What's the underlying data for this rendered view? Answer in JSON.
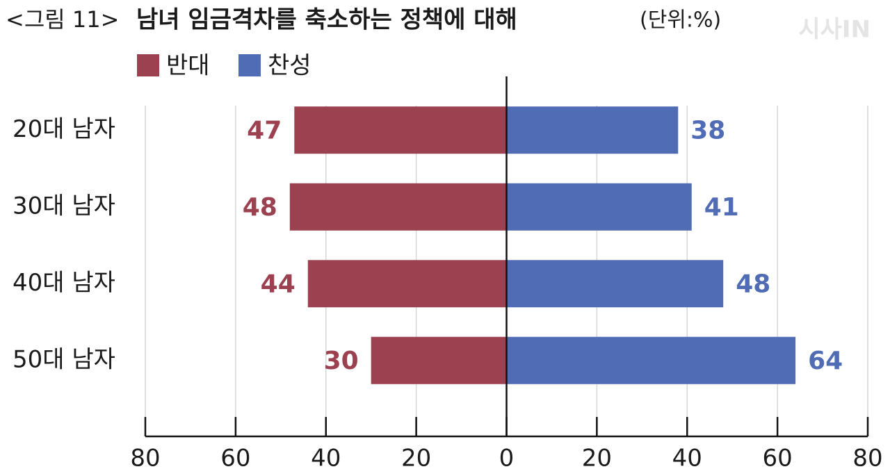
{
  "chart_data": {
    "type": "diverging-bar",
    "figure_label": "<그림 11>",
    "title": "남녀 임금격차를 축소하는 정책에 대해",
    "unit": "(단위:%)",
    "watermark": "시사IN",
    "categories": [
      "20대 남자",
      "30대 남자",
      "40대 남자",
      "50대 남자"
    ],
    "series": [
      {
        "name": "반대",
        "color": "#9c4150",
        "side": "left",
        "values": [
          47,
          48,
          44,
          30
        ]
      },
      {
        "name": "찬성",
        "color": "#4f6cb4",
        "side": "right",
        "values": [
          38,
          41,
          48,
          64
        ]
      }
    ],
    "xlim": [
      -80,
      80
    ],
    "xticks": [
      {
        "value": -80,
        "label": "80"
      },
      {
        "value": -60,
        "label": "60"
      },
      {
        "value": -40,
        "label": "40"
      },
      {
        "value": -20,
        "label": "20"
      },
      0,
      20,
      40,
      60,
      80
    ],
    "grid": true
  }
}
